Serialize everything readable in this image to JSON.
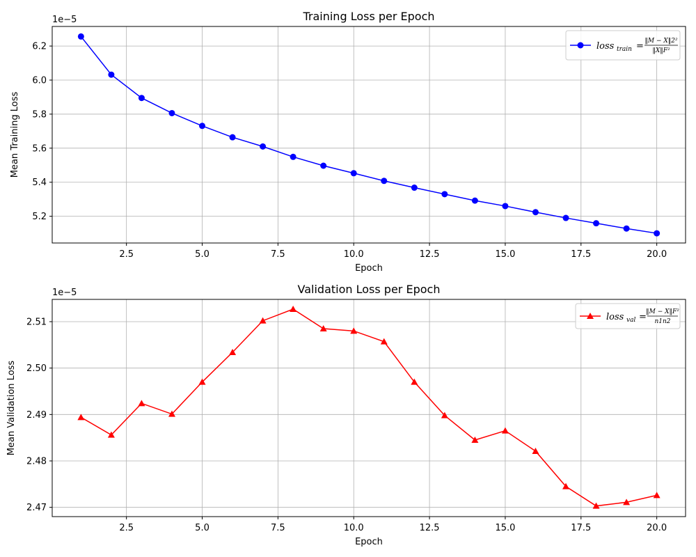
{
  "chart_data": [
    {
      "type": "line",
      "title": "Training Loss per Epoch",
      "xlabel": "Epoch",
      "ylabel": "Mean Training Loss",
      "y_offset_label": "1e−5",
      "xlim": [
        0.05,
        20.95
      ],
      "ylim": [
        5.043,
        6.315
      ],
      "x_ticks": [
        2.5,
        5.0,
        7.5,
        10.0,
        12.5,
        15.0,
        17.5,
        20.0
      ],
      "x_tick_labels": [
        "2.5",
        "5.0",
        "7.5",
        "10.0",
        "12.5",
        "15.0",
        "17.5",
        "20.0"
      ],
      "y_ticks": [
        5.2,
        5.4,
        5.6,
        5.8,
        6.0,
        6.2
      ],
      "y_tick_labels": [
        "5.2",
        "5.4",
        "5.6",
        "5.8",
        "6.0",
        "6.2"
      ],
      "grid": true,
      "legend_position": "top-right",
      "series": [
        {
          "name": "loss_train = ‖M−X‖2² / ‖X‖F²",
          "color": "#0000ff",
          "marker": "circle",
          "x": [
            1,
            2,
            3,
            4,
            5,
            6,
            7,
            8,
            9,
            10,
            11,
            12,
            13,
            14,
            15,
            16,
            17,
            18,
            19,
            20
          ],
          "y": [
            6.256,
            6.032,
            5.895,
            5.806,
            5.731,
            5.664,
            5.61,
            5.549,
            5.497,
            5.453,
            5.408,
            5.368,
            5.33,
            5.292,
            5.26,
            5.224,
            5.19,
            5.159,
            5.128,
            5.1
          ]
        }
      ],
      "legend": {
        "main": "loss",
        "sub": "train",
        "eq": "=",
        "numerator": "‖M − X‖2²",
        "denominator": "‖X‖F²"
      }
    },
    {
      "type": "line",
      "title": "Validation Loss per Epoch",
      "xlabel": "Epoch",
      "ylabel": "Mean Validation Loss",
      "y_offset_label": "1e−5",
      "xlim": [
        0.05,
        20.95
      ],
      "ylim": [
        2.468,
        2.5148
      ],
      "x_ticks": [
        2.5,
        5.0,
        7.5,
        10.0,
        12.5,
        15.0,
        17.5,
        20.0
      ],
      "x_tick_labels": [
        "2.5",
        "5.0",
        "7.5",
        "10.0",
        "12.5",
        "15.0",
        "17.5",
        "20.0"
      ],
      "y_ticks": [
        2.47,
        2.48,
        2.49,
        2.5,
        2.51
      ],
      "y_tick_labels": [
        "2.47",
        "2.48",
        "2.49",
        "2.50",
        "2.51"
      ],
      "grid": true,
      "legend_position": "top-right",
      "series": [
        {
          "name": "loss_val = ‖M−X‖F² / n1n2",
          "color": "#ff0000",
          "marker": "triangle",
          "x": [
            1,
            2,
            3,
            4,
            5,
            6,
            7,
            8,
            9,
            10,
            11,
            12,
            13,
            14,
            15,
            16,
            17,
            18,
            19,
            20
          ],
          "y": [
            2.4894,
            2.4856,
            2.4924,
            2.4901,
            2.497,
            2.5034,
            2.5102,
            2.5127,
            2.5085,
            2.508,
            2.5057,
            2.497,
            2.4898,
            2.4845,
            2.4865,
            2.4821,
            2.4745,
            2.4703,
            2.4711,
            2.4726
          ]
        }
      ],
      "legend": {
        "main": "loss",
        "sub": "val",
        "eq": "=",
        "numerator": "‖M − X‖F²",
        "denominator": "n1n2"
      }
    }
  ]
}
